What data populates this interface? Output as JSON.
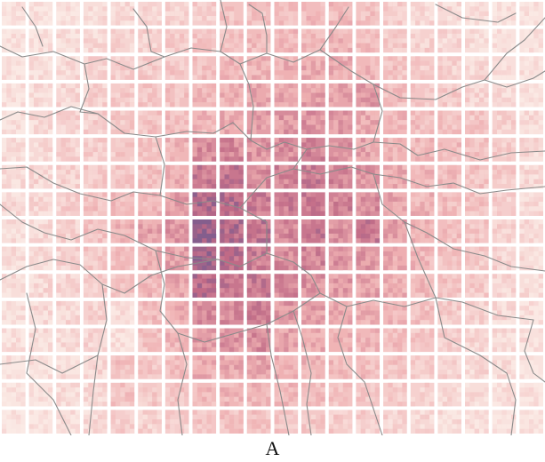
{
  "figure": {
    "panel_label": "A"
  },
  "map": {
    "type": "gridded density map with boundary overlay",
    "grid_columns": 20,
    "grid_rows": 16,
    "colors": {
      "low": "#fbebe6",
      "mid": "#efb0b2",
      "high": "#c06a86",
      "max": "#7e5d8e",
      "grid_gap": "#ffffff",
      "boundaries": "#8a8a8a"
    },
    "cell_intensity": [
      [
        0.05,
        0.06,
        0.08,
        0.1,
        0.13,
        0.16,
        0.2,
        0.22,
        0.3,
        0.32,
        0.34,
        0.35,
        0.36,
        0.3,
        0.24,
        0.16,
        0.12,
        0.08,
        0.06,
        0.05
      ],
      [
        0.06,
        0.08,
        0.1,
        0.13,
        0.17,
        0.2,
        0.24,
        0.28,
        0.34,
        0.36,
        0.38,
        0.4,
        0.4,
        0.34,
        0.26,
        0.2,
        0.15,
        0.1,
        0.07,
        0.06
      ],
      [
        0.07,
        0.1,
        0.14,
        0.18,
        0.22,
        0.25,
        0.28,
        0.32,
        0.38,
        0.42,
        0.44,
        0.46,
        0.44,
        0.38,
        0.3,
        0.24,
        0.2,
        0.14,
        0.09,
        0.07
      ],
      [
        0.08,
        0.12,
        0.16,
        0.2,
        0.24,
        0.28,
        0.32,
        0.36,
        0.42,
        0.48,
        0.5,
        0.52,
        0.5,
        0.56,
        0.34,
        0.28,
        0.24,
        0.18,
        0.12,
        0.08
      ],
      [
        0.1,
        0.14,
        0.18,
        0.22,
        0.26,
        0.3,
        0.34,
        0.38,
        0.46,
        0.54,
        0.56,
        0.58,
        0.54,
        0.46,
        0.38,
        0.32,
        0.3,
        0.28,
        0.2,
        0.12
      ],
      [
        0.1,
        0.14,
        0.18,
        0.22,
        0.26,
        0.3,
        0.4,
        0.62,
        0.64,
        0.58,
        0.6,
        0.66,
        0.6,
        0.5,
        0.42,
        0.36,
        0.34,
        0.32,
        0.24,
        0.14
      ],
      [
        0.12,
        0.16,
        0.2,
        0.24,
        0.28,
        0.32,
        0.44,
        0.72,
        0.74,
        0.62,
        0.66,
        0.7,
        0.66,
        0.58,
        0.46,
        0.38,
        0.34,
        0.3,
        0.24,
        0.14
      ],
      [
        0.12,
        0.16,
        0.22,
        0.3,
        0.34,
        0.38,
        0.52,
        0.84,
        0.8,
        0.7,
        0.7,
        0.72,
        0.68,
        0.62,
        0.5,
        0.4,
        0.34,
        0.3,
        0.22,
        0.12
      ],
      [
        0.1,
        0.14,
        0.2,
        0.32,
        0.4,
        0.5,
        0.58,
        0.92,
        0.82,
        0.76,
        0.64,
        0.74,
        0.62,
        0.72,
        0.52,
        0.42,
        0.34,
        0.28,
        0.2,
        0.12
      ],
      [
        0.1,
        0.14,
        0.18,
        0.26,
        0.34,
        0.42,
        0.52,
        0.9,
        0.8,
        0.7,
        0.62,
        0.66,
        0.58,
        0.56,
        0.46,
        0.38,
        0.32,
        0.26,
        0.18,
        0.1
      ],
      [
        0.1,
        0.14,
        0.18,
        0.24,
        0.3,
        0.38,
        0.48,
        0.8,
        0.74,
        0.72,
        0.64,
        0.6,
        0.54,
        0.5,
        0.42,
        0.36,
        0.3,
        0.24,
        0.16,
        0.1
      ],
      [
        0.1,
        0.12,
        0.16,
        0.2,
        0.08,
        0.34,
        0.44,
        0.64,
        0.62,
        0.68,
        0.56,
        0.52,
        0.46,
        0.42,
        0.38,
        0.32,
        0.26,
        0.2,
        0.14,
        0.08
      ],
      [
        0.08,
        0.1,
        0.14,
        0.18,
        0.08,
        0.3,
        0.38,
        0.54,
        0.58,
        0.62,
        0.5,
        0.46,
        0.42,
        0.38,
        0.34,
        0.28,
        0.22,
        0.16,
        0.12,
        0.08
      ],
      [
        0.06,
        0.08,
        0.12,
        0.16,
        0.32,
        0.28,
        0.34,
        0.44,
        0.48,
        0.5,
        0.44,
        0.4,
        0.36,
        0.34,
        0.3,
        0.24,
        0.18,
        0.14,
        0.1,
        0.06
      ],
      [
        0.04,
        0.06,
        0.1,
        0.14,
        0.3,
        0.26,
        0.28,
        0.36,
        0.4,
        0.4,
        0.36,
        0.34,
        0.3,
        0.28,
        0.24,
        0.2,
        0.14,
        0.1,
        0.08,
        0.05
      ],
      [
        0.03,
        0.05,
        0.08,
        0.12,
        0.22,
        0.2,
        0.22,
        0.28,
        0.3,
        0.3,
        0.28,
        0.26,
        0.24,
        0.22,
        0.18,
        0.14,
        0.1,
        0.08,
        0.06,
        0.04
      ]
    ]
  }
}
